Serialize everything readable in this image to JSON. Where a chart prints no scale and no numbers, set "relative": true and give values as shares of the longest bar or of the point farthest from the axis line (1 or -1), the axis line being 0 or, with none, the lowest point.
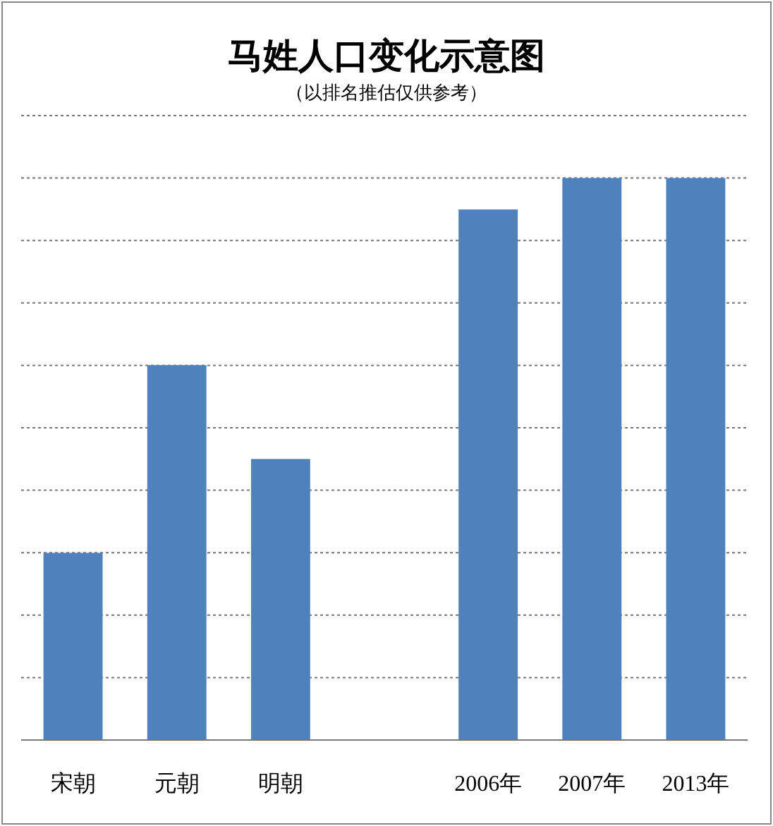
{
  "chart_data": {
    "type": "bar",
    "title": "马姓人口变化示意图",
    "subtitle": "（以排名推估仅供参考）",
    "categories": [
      "宋朝",
      "元朝",
      "明朝",
      null,
      "2006年",
      "2007年",
      "2013年"
    ],
    "values": [
      0.333,
      0.667,
      0.5,
      null,
      0.944,
      1,
      1
    ],
    "color": "#4f81bd",
    "relative": true,
    "grid": "y"
  }
}
